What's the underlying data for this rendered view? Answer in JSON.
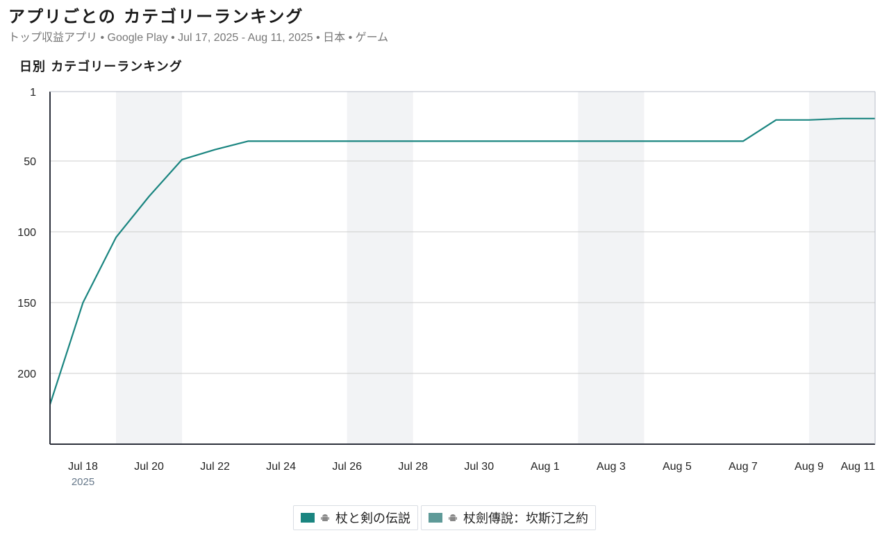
{
  "header": {
    "title": "アプリごとの カテゴリーランキング",
    "subtitle": "トップ収益アプリ • Google Play • Jul 17, 2025 - Aug 11, 2025 • 日本 • ゲーム"
  },
  "chart_title": "日別 カテゴリーランキング",
  "colors": {
    "series1": "#1a8580",
    "series2": "#5e9a98",
    "weekend_band": "#f2f3f5",
    "grid": "#cccccc",
    "axis": "#2b2f3a"
  },
  "icons": {
    "platform": "android-icon"
  },
  "chart_data": {
    "type": "line",
    "title": "日別 カテゴリーランキング",
    "xlabel": "",
    "ylabel": "",
    "y_inverted": true,
    "ylim": [
      1,
      250
    ],
    "yticks": [
      1,
      50,
      100,
      150,
      200
    ],
    "x_range": [
      "2025-07-17",
      "2025-08-11"
    ],
    "x_ticks": [
      "Jul 18",
      "Jul 20",
      "Jul 22",
      "Jul 24",
      "Jul 26",
      "Jul 28",
      "Jul 30",
      "Aug 1",
      "Aug 3",
      "Aug 5",
      "Aug 7",
      "Aug 9",
      "Aug 11"
    ],
    "x_tick_dates": [
      "2025-07-18",
      "2025-07-20",
      "2025-07-22",
      "2025-07-24",
      "2025-07-26",
      "2025-07-28",
      "2025-07-30",
      "2025-08-01",
      "2025-08-03",
      "2025-08-05",
      "2025-08-07",
      "2025-08-09",
      "2025-08-11"
    ],
    "x_year_label": "2025",
    "weekend_bands": [
      [
        "2025-07-19",
        "2025-07-21"
      ],
      [
        "2025-07-26",
        "2025-07-28"
      ],
      [
        "2025-08-02",
        "2025-08-04"
      ],
      [
        "2025-08-09",
        "2025-08-11"
      ]
    ],
    "legend": "bottom-center",
    "grid": true,
    "series": [
      {
        "name": "杖と剣の伝説",
        "x": [
          "2025-07-17",
          "2025-07-18",
          "2025-07-19",
          "2025-07-20",
          "2025-07-21",
          "2025-07-22",
          "2025-07-23",
          "2025-07-24",
          "2025-07-25",
          "2025-07-26",
          "2025-07-27",
          "2025-07-28",
          "2025-07-29",
          "2025-07-30",
          "2025-07-31",
          "2025-08-01",
          "2025-08-02",
          "2025-08-03",
          "2025-08-04",
          "2025-08-05",
          "2025-08-06",
          "2025-08-07",
          "2025-08-08",
          "2025-08-09",
          "2025-08-10",
          "2025-08-11"
        ],
        "values": [
          222,
          150,
          104,
          75,
          49,
          42,
          36,
          36,
          36,
          36,
          36,
          36,
          36,
          36,
          36,
          36,
          36,
          36,
          36,
          36,
          36,
          36,
          21,
          21,
          20,
          20
        ]
      },
      {
        "name": "杖劍傳說：坎斯汀之約",
        "x": [],
        "values": []
      }
    ]
  }
}
